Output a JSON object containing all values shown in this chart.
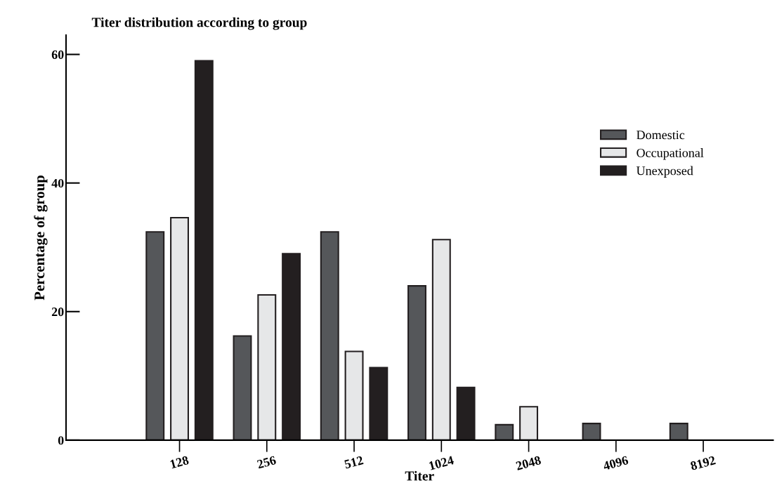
{
  "chart_data": {
    "type": "bar",
    "title": "Titer distribution according to group",
    "xlabel": "Titer",
    "ylabel": "Percentage of group",
    "categories": [
      "128",
      "256",
      "512",
      "1024",
      "2048",
      "4096",
      "8192"
    ],
    "series": [
      {
        "name": "Domestic",
        "color": "#55575a",
        "values": [
          32.4,
          16.2,
          32.4,
          24,
          2.4,
          2.6,
          2.6
        ]
      },
      {
        "name": "Occupational",
        "color": "#e6e7e8",
        "values": [
          34.6,
          22.6,
          13.8,
          31.2,
          5.2,
          null,
          null
        ]
      },
      {
        "name": "Unexposed",
        "color": "#231f20",
        "values": [
          59,
          29,
          11.3,
          8.2,
          null,
          null,
          null
        ]
      }
    ],
    "ylim": [
      0,
      63
    ],
    "yticks": [
      0,
      20,
      40,
      60
    ],
    "grid": false,
    "legend": "right"
  }
}
